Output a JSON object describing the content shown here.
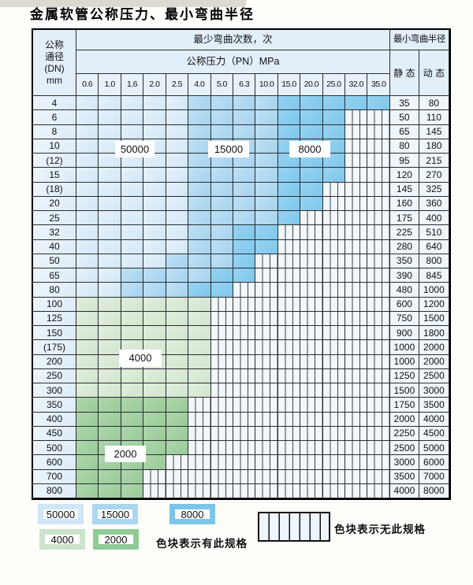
{
  "title": "金属软管公称压力、最小弯曲半径",
  "colors": {
    "cycles_50000": "#d2e7f6",
    "cycles_15000": "#a5d3ee",
    "cycles_8000": "#7ec7ec",
    "cycles_4000": "#d2e5ce",
    "cycles_2000": "#99cb98",
    "hatch_base": "#f2f7fc",
    "grid_line": "#2a2d31"
  },
  "table": {
    "dn_header_lines": [
      "公称",
      "通径",
      "(DN)",
      "mm"
    ],
    "cycles_header": "最少弯曲次数，次",
    "radius_header": "最小弯曲半径",
    "pressure_header": "公称压力（PN）MPa",
    "static_label": "静 态",
    "dynamic_label": "动 态",
    "pressure_ticks": [
      "0.6",
      "1.0",
      "1.6",
      "2.0",
      "2.5",
      "4.0",
      "5.0",
      "6.3",
      "10.0",
      "15.0",
      "20.0",
      "25.0",
      "32.0",
      "35.0"
    ],
    "band_legend": {
      "l": "50000",
      "m": "15000",
      "d": "8000",
      "g4": "4000",
      "g2": "2000",
      "h": "not available"
    },
    "rows": [
      {
        "dn": "4",
        "bands": [
          [
            "l",
            5
          ],
          [
            "m",
            4
          ],
          [
            "d",
            5
          ]
        ],
        "static": "35",
        "dynamic": "80"
      },
      {
        "dn": "6",
        "bands": [
          [
            "l",
            5
          ],
          [
            "m",
            4
          ],
          [
            "d",
            3
          ],
          [
            "h",
            2
          ]
        ],
        "static": "50",
        "dynamic": "110"
      },
      {
        "dn": "8",
        "bands": [
          [
            "l",
            5
          ],
          [
            "m",
            4
          ],
          [
            "d",
            3
          ],
          [
            "h",
            2
          ]
        ],
        "static": "65",
        "dynamic": "145"
      },
      {
        "dn": "10",
        "bands": [
          [
            "l",
            5
          ],
          [
            "m",
            4
          ],
          [
            "d",
            3
          ],
          [
            "h",
            2
          ]
        ],
        "static": "80",
        "dynamic": "180"
      },
      {
        "dn": "(12)",
        "bands": [
          [
            "l",
            5
          ],
          [
            "m",
            4
          ],
          [
            "d",
            3
          ],
          [
            "h",
            2
          ]
        ],
        "static": "95",
        "dynamic": "215"
      },
      {
        "dn": "15",
        "bands": [
          [
            "l",
            5
          ],
          [
            "m",
            4
          ],
          [
            "d",
            3
          ],
          [
            "h",
            2
          ]
        ],
        "static": "120",
        "dynamic": "270"
      },
      {
        "dn": "(18)",
        "bands": [
          [
            "l",
            5
          ],
          [
            "m",
            4
          ],
          [
            "d",
            2
          ],
          [
            "h",
            3
          ]
        ],
        "static": "145",
        "dynamic": "325"
      },
      {
        "dn": "20",
        "bands": [
          [
            "l",
            5
          ],
          [
            "m",
            4
          ],
          [
            "d",
            2
          ],
          [
            "h",
            3
          ]
        ],
        "static": "160",
        "dynamic": "360"
      },
      {
        "dn": "25",
        "bands": [
          [
            "l",
            5
          ],
          [
            "m",
            4
          ],
          [
            "d",
            1
          ],
          [
            "h",
            4
          ]
        ],
        "static": "175",
        "dynamic": "400"
      },
      {
        "dn": "32",
        "bands": [
          [
            "l",
            5
          ],
          [
            "m",
            2
          ],
          [
            "d",
            2
          ],
          [
            "h",
            5
          ]
        ],
        "static": "225",
        "dynamic": "510"
      },
      {
        "dn": "40",
        "bands": [
          [
            "l",
            5
          ],
          [
            "m",
            2
          ],
          [
            "d",
            2
          ],
          [
            "h",
            5
          ]
        ],
        "static": "280",
        "dynamic": "640"
      },
      {
        "dn": "50",
        "bands": [
          [
            "l",
            4
          ],
          [
            "m",
            3
          ],
          [
            "d",
            1
          ],
          [
            "h",
            6
          ]
        ],
        "static": "350",
        "dynamic": "800"
      },
      {
        "dn": "65",
        "bands": [
          [
            "l",
            2
          ],
          [
            "m",
            4
          ],
          [
            "d",
            2
          ],
          [
            "h",
            6
          ]
        ],
        "static": "390",
        "dynamic": "845"
      },
      {
        "dn": "80",
        "bands": [
          [
            "l",
            2
          ],
          [
            "m",
            3
          ],
          [
            "d",
            2
          ],
          [
            "h",
            7
          ]
        ],
        "static": "480",
        "dynamic": "1000"
      },
      {
        "dn": "100",
        "bands": [
          [
            "g4",
            6
          ],
          [
            "h",
            8
          ]
        ],
        "static": "600",
        "dynamic": "1200"
      },
      {
        "dn": "125",
        "bands": [
          [
            "g4",
            6
          ],
          [
            "h",
            8
          ]
        ],
        "static": "750",
        "dynamic": "1500"
      },
      {
        "dn": "150",
        "bands": [
          [
            "g4",
            6
          ],
          [
            "h",
            8
          ]
        ],
        "static": "900",
        "dynamic": "1800"
      },
      {
        "dn": "(175)",
        "bands": [
          [
            "g4",
            6
          ],
          [
            "h",
            8
          ]
        ],
        "static": "1000",
        "dynamic": "2000"
      },
      {
        "dn": "200",
        "bands": [
          [
            "g4",
            6
          ],
          [
            "h",
            8
          ]
        ],
        "static": "1000",
        "dynamic": "2000"
      },
      {
        "dn": "250",
        "bands": [
          [
            "g4",
            6
          ],
          [
            "h",
            8
          ]
        ],
        "static": "1250",
        "dynamic": "2500"
      },
      {
        "dn": "300",
        "bands": [
          [
            "g4",
            6
          ],
          [
            "h",
            8
          ]
        ],
        "static": "1500",
        "dynamic": "3000"
      },
      {
        "dn": "350",
        "bands": [
          [
            "g2",
            5
          ],
          [
            "h",
            9
          ]
        ],
        "static": "1750",
        "dynamic": "3500"
      },
      {
        "dn": "400",
        "bands": [
          [
            "g2",
            5
          ],
          [
            "h",
            9
          ]
        ],
        "static": "2000",
        "dynamic": "4000"
      },
      {
        "dn": "450",
        "bands": [
          [
            "g2",
            5
          ],
          [
            "h",
            9
          ]
        ],
        "static": "2250",
        "dynamic": "4500"
      },
      {
        "dn": "500",
        "bands": [
          [
            "g2",
            5
          ],
          [
            "h",
            9
          ]
        ],
        "static": "2500",
        "dynamic": "5000"
      },
      {
        "dn": "600",
        "bands": [
          [
            "g2",
            4
          ],
          [
            "h",
            10
          ]
        ],
        "static": "3000",
        "dynamic": "6000"
      },
      {
        "dn": "700",
        "bands": [
          [
            "g2",
            3
          ],
          [
            "h",
            11
          ]
        ],
        "static": "3500",
        "dynamic": "7000"
      },
      {
        "dn": "800",
        "bands": [
          [
            "g2",
            3
          ],
          [
            "h",
            11
          ]
        ],
        "static": "4000",
        "dynamic": "8000"
      }
    ]
  },
  "region_labels": {
    "r50000": "50000",
    "r15000": "15000",
    "r8000": "8000",
    "r4000": "4000",
    "r2000": "2000"
  },
  "legend": {
    "items": [
      {
        "label": "50000"
      },
      {
        "label": "15000"
      },
      {
        "label": "8000"
      },
      {
        "label": "4000"
      },
      {
        "label": "2000"
      }
    ],
    "available_text": "色块表示有此规格",
    "unavailable_text": "色块表示无此规格"
  }
}
